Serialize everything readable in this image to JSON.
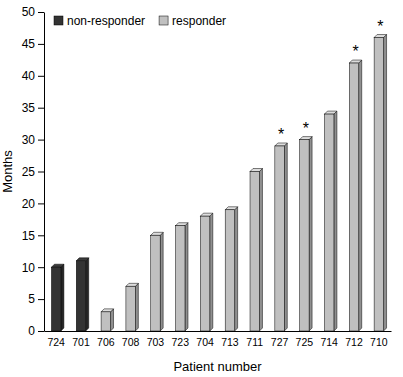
{
  "chart_data": {
    "type": "bar",
    "x_label": "Patient number",
    "y_label": "Months",
    "categories": [
      "724",
      "701",
      "706",
      "708",
      "703",
      "723",
      "704",
      "713",
      "711",
      "727",
      "725",
      "714",
      "712",
      "710"
    ],
    "series": [
      {
        "name": "non-responder",
        "color": "#333333",
        "values": [
          10,
          11,
          null,
          null,
          null,
          null,
          null,
          null,
          null,
          null,
          null,
          null,
          null,
          null
        ]
      },
      {
        "name": "responder",
        "color": "#c0c0c0",
        "values": [
          null,
          null,
          3,
          7,
          15,
          16.5,
          18,
          19,
          25,
          29,
          30,
          34,
          42,
          46
        ]
      }
    ],
    "annotations": [
      {
        "text": "*",
        "category": "727"
      },
      {
        "text": "*",
        "category": "725"
      },
      {
        "text": "*",
        "category": "712"
      },
      {
        "text": "*",
        "category": "710"
      }
    ],
    "ylim": [
      0,
      50
    ],
    "yticks": [
      0,
      5,
      10,
      15,
      20,
      25,
      30,
      35,
      40,
      45,
      50
    ],
    "grid": false,
    "legend": "top-left"
  }
}
